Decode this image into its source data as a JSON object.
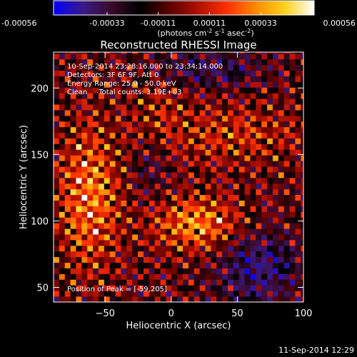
{
  "colorbar": {
    "min": -0.00056,
    "max": 0.00056,
    "tick_values": [
      -0.00056,
      -0.00033,
      -0.00011,
      0.00011,
      0.00033,
      0.00056
    ],
    "tick_labels": [
      "-0.00056",
      "-0.00033",
      "-0.00011",
      "0.00011",
      "0.00033",
      "0.00056"
    ],
    "unit_label": {
      "prefix": "(photons cm",
      "sup1": "-2",
      "mid1": " s",
      "sup2": "-1",
      "mid2": " asec",
      "sup3": "-2",
      "suffix": ")"
    },
    "colors": [
      "#0000ff",
      "#3a1a8a",
      "#3a0a2a",
      "#000000",
      "#5a0000",
      "#b01000",
      "#ff3000",
      "#ff8c00",
      "#ffd21e",
      "#ffffff"
    ]
  },
  "annotations": {
    "time_range": "10-Sep-2014 23:28:16.000 to 23:34:14.000",
    "detectors": "Detectors: 3F 6F 9F, Att 0",
    "energy_range": "Energy Range: 25.0 - 50.0 keV",
    "clean_counts": "Clean     Total counts: 3.19E+03",
    "peak": "Position of Peak = [-59,205]"
  },
  "footer": {
    "timestamp": "11-Sep-2014 12:29"
  },
  "chart_data": {
    "type": "heatmap",
    "title": "Reconstructed RHESSI Image",
    "xlabel": "Heliocentric X (arcsec)",
    "ylabel": "Heliocentric Y (arcsec)",
    "xlim": [
      -89,
      100
    ],
    "ylim": [
      39,
      227
    ],
    "xticks": [
      -50,
      0,
      50,
      100
    ],
    "yticks": [
      50,
      100,
      150,
      200
    ],
    "xtick_labels": [
      "−50",
      "0",
      "50",
      "100"
    ],
    "ytick_labels": [
      "50",
      "100",
      "150",
      "200"
    ],
    "grid": false,
    "pixel_size_arcsec": 4.25,
    "peak_position": [
      -59,
      205
    ],
    "color_range": [
      -0.00056,
      0.00056
    ]
  }
}
